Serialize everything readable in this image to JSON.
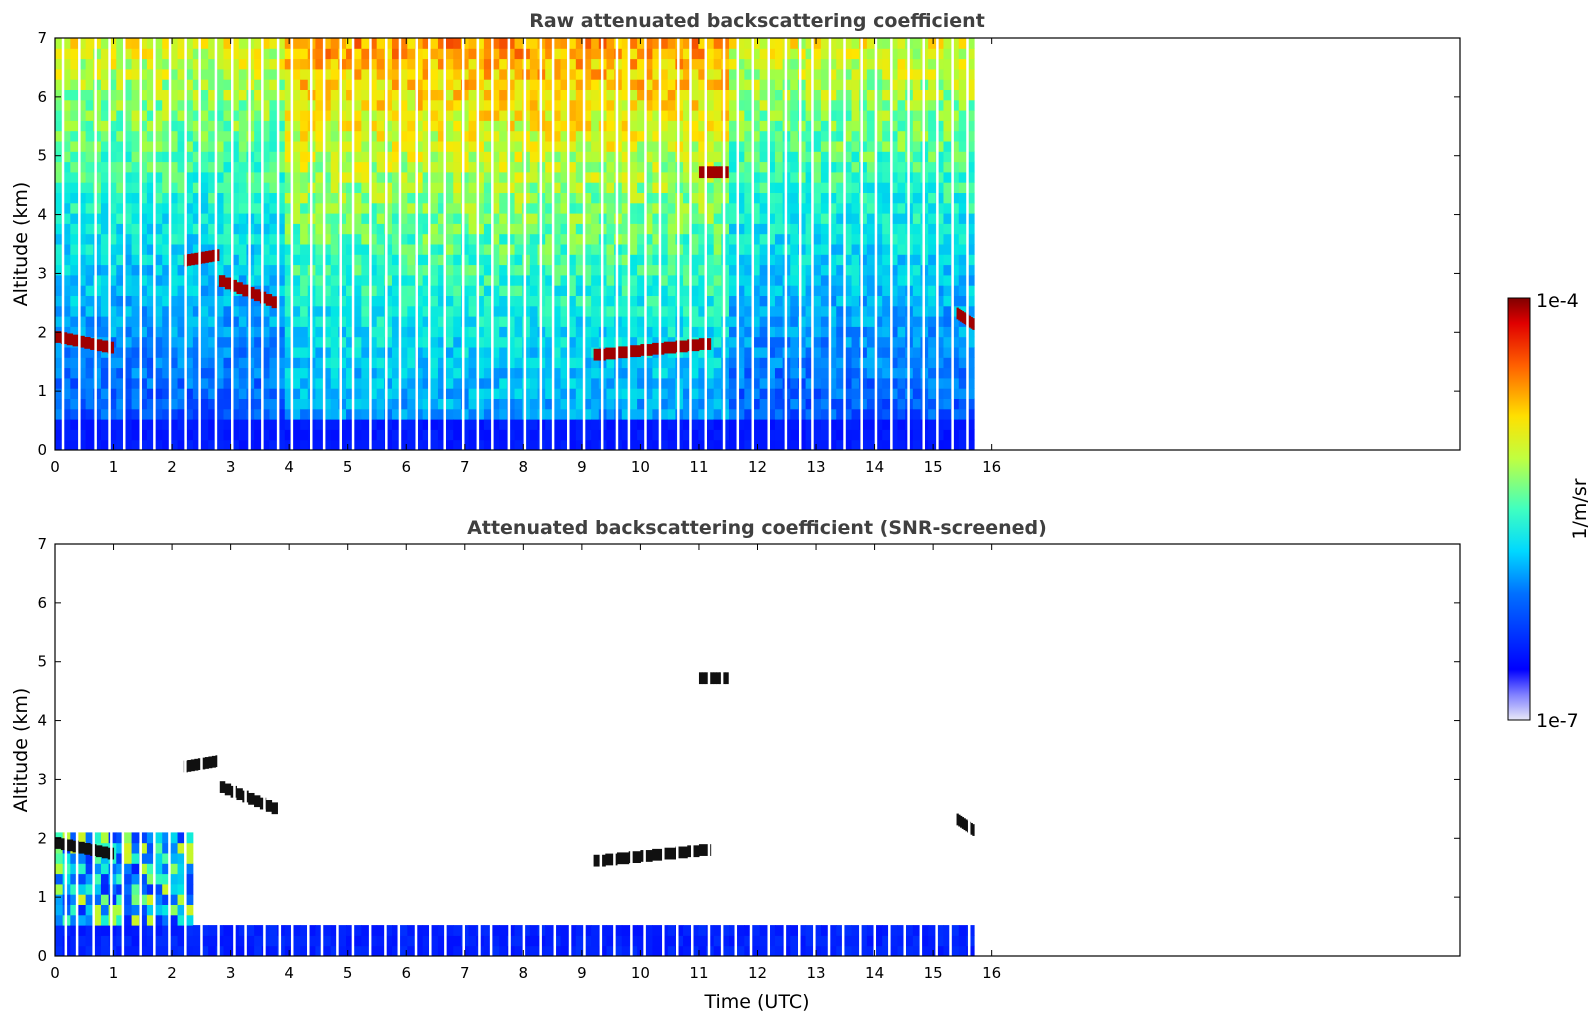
{
  "chart_data": [
    {
      "type": "heatmap",
      "title": "Raw attenuated backscattering coefficient",
      "xlabel": "",
      "ylabel": "Altitude (km)",
      "xlim": [
        0,
        24
      ],
      "ylim": [
        0,
        7
      ],
      "x_ticks": [
        "0",
        "1",
        "2",
        "3",
        "4",
        "5",
        "6",
        "7",
        "8",
        "9",
        "10",
        "11",
        "12",
        "13",
        "14",
        "15",
        "16"
      ],
      "y_ticks": [
        "0",
        "1",
        "2",
        "3",
        "4",
        "5",
        "6",
        "7"
      ],
      "data_extent_x": [
        0,
        15.7
      ],
      "grid": false,
      "features": {
        "surface_layer_top_km": 0.5,
        "cloud_layers": [
          {
            "t_start": 0.0,
            "t_end": 1.0,
            "alt_start": 1.9,
            "alt_end": 1.7
          },
          {
            "t_start": 2.2,
            "t_end": 2.8,
            "alt_start": 3.2,
            "alt_end": 3.3
          },
          {
            "t_start": 2.8,
            "t_end": 3.8,
            "alt_start": 2.85,
            "alt_end": 2.45
          },
          {
            "t_start": 9.2,
            "t_end": 11.2,
            "alt_start": 1.6,
            "alt_end": 1.8
          },
          {
            "t_start": 11.0,
            "t_end": 11.5,
            "alt_start": 4.7,
            "alt_end": 4.7
          },
          {
            "t_start": 15.4,
            "t_end": 15.7,
            "alt_start": 2.3,
            "alt_end": 2.1
          }
        ]
      }
    },
    {
      "type": "heatmap",
      "title": "Attenuated backscattering coefficient (SNR-screened)",
      "xlabel": "Time (UTC)",
      "ylabel": "Altitude (km)",
      "xlim": [
        0,
        24
      ],
      "ylim": [
        0,
        7
      ],
      "x_ticks": [
        "0",
        "1",
        "2",
        "3",
        "4",
        "5",
        "6",
        "7",
        "8",
        "9",
        "10",
        "11",
        "12",
        "13",
        "14",
        "15",
        "16"
      ],
      "y_ticks": [
        "0",
        "1",
        "2",
        "3",
        "4",
        "5",
        "6",
        "7"
      ],
      "data_extent_x": [
        0,
        15.7
      ],
      "grid": false
    }
  ],
  "colorbar": {
    "label": "1/m/sr",
    "max_label": "1e-4",
    "min_label": "1e-7",
    "scale": "log",
    "range": [
      1e-07,
      0.0001
    ],
    "colormap": "jet"
  }
}
